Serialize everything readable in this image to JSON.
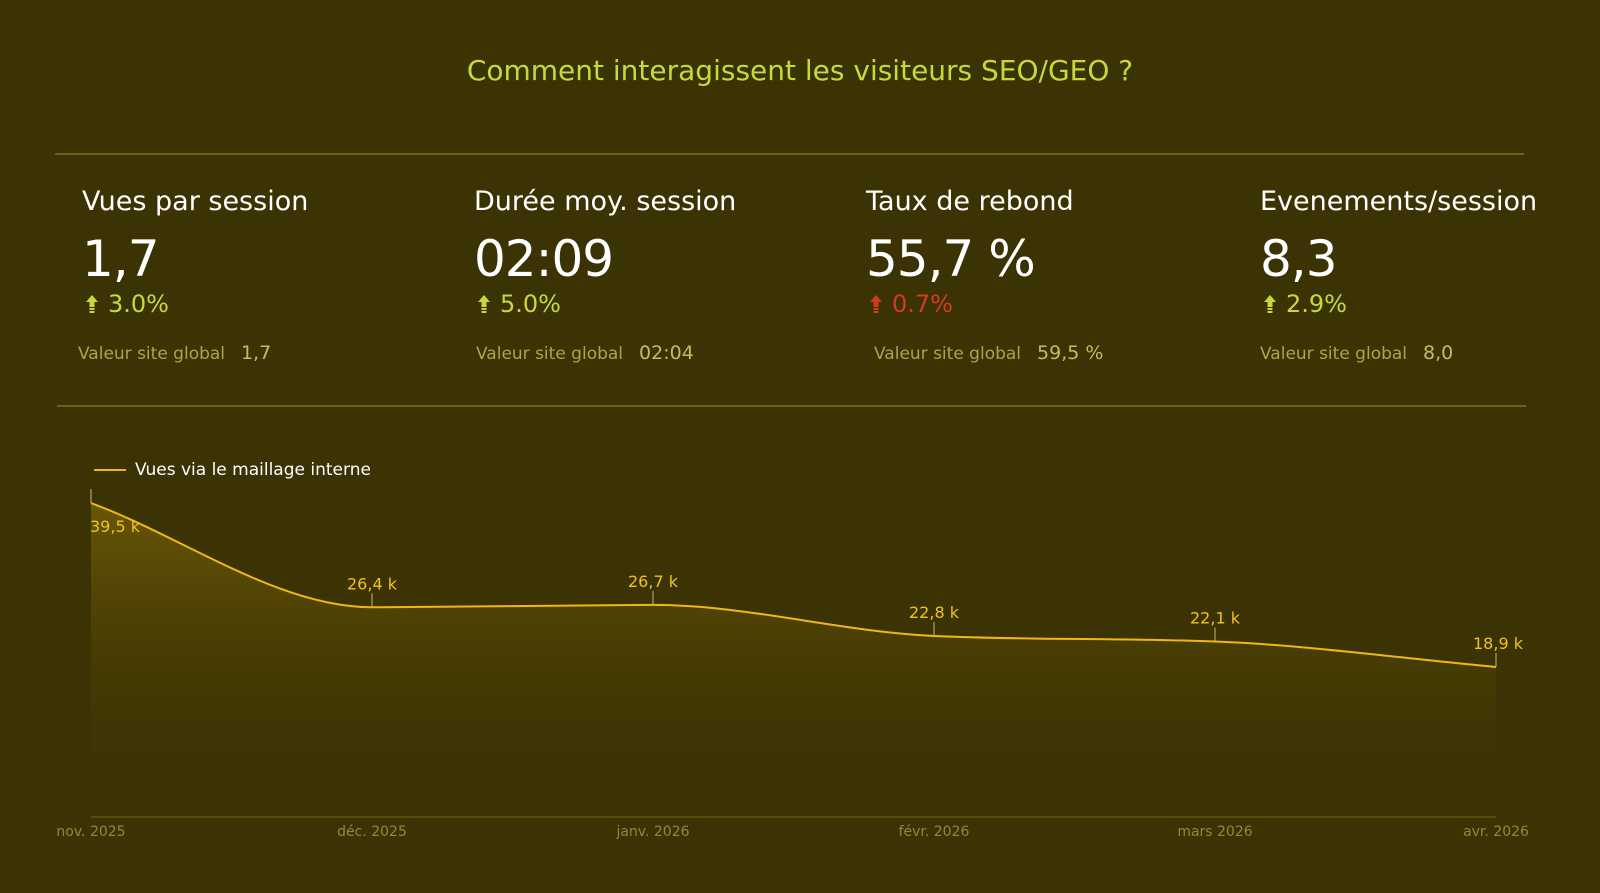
{
  "header": {
    "title": "Comment interagissent les visiteurs SEO/GEO ?"
  },
  "kpis": [
    {
      "label": "Vues par session",
      "value": "1,7",
      "delta": "3.0%",
      "direction": "up",
      "sentiment": "positive",
      "global_label": "Valeur site global",
      "global_value": "1,7"
    },
    {
      "label": "Durée moy. session",
      "value": "02:09",
      "delta": "5.0%",
      "direction": "up",
      "sentiment": "positive",
      "global_label": "Valeur site global",
      "global_value": "02:04"
    },
    {
      "label": "Taux de rebond",
      "value": "55,7 %",
      "delta": "0.7%",
      "direction": "up",
      "sentiment": "negative",
      "global_label": "Valeur site global",
      "global_value": "59,5 %"
    },
    {
      "label": "Evenements/session",
      "value": "8,3",
      "delta": "2.9%",
      "direction": "up",
      "sentiment": "positive",
      "global_label": "Valeur site global",
      "global_value": "8,0"
    }
  ],
  "colors": {
    "background": "#3b3304",
    "title": "#c7d93a",
    "positive": "#c7d93a",
    "negative": "#d63a1e",
    "series_line": "#f0b714",
    "data_label": "#f0c419",
    "axis_label": "#8f8a3a",
    "rule": "#6a6318"
  },
  "chart_data": {
    "type": "area",
    "categories": [
      "nov. 2025",
      "déc. 2025",
      "janv. 2026",
      "févr. 2026",
      "mars 2026",
      "avr. 2026"
    ],
    "series": [
      {
        "name": "Vues via le maillage interne",
        "values": [
          39500,
          26400,
          26700,
          22800,
          22100,
          18900
        ],
        "labels": [
          "39,5 k",
          "26,4 k",
          "26,7 k",
          "22,8 k",
          "22,1 k",
          "18,9 k"
        ]
      }
    ],
    "title": "",
    "xlabel": "",
    "ylabel": "",
    "grid": false,
    "legend": "top-left"
  }
}
